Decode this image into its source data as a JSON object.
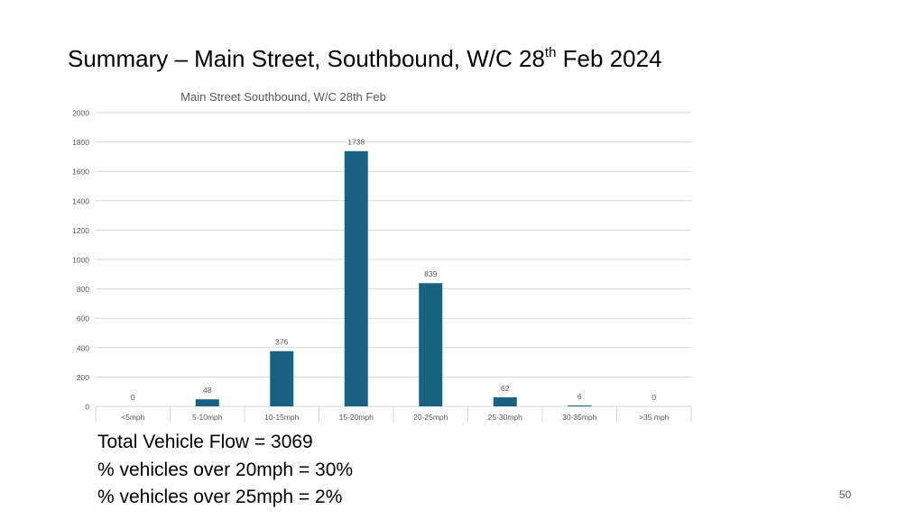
{
  "slide": {
    "title_main": "Summary – Main Street, Southbound, W/C 28",
    "title_sup": "th",
    "title_end": " Feb 2024",
    "page_number": "50"
  },
  "summary": {
    "lines": [
      "Total Vehicle Flow = 3069",
      "% vehicles over 20mph = 30%",
      "% vehicles over 25mph = 2%"
    ]
  },
  "chart_data": {
    "type": "bar",
    "title": "Main Street Southbound, W/C 28th Feb",
    "categories": [
      "<5mph",
      "5-10mph",
      "10-15mph",
      "15-20mph",
      "20-25mph",
      "25-30mph",
      "30-35mph",
      ">35 mph"
    ],
    "values": [
      0,
      48,
      376,
      1738,
      839,
      62,
      6,
      0
    ],
    "data_labels": [
      "0",
      "48",
      "376",
      "1738",
      "839",
      "62",
      "6",
      "0"
    ],
    "yticks": [
      0,
      200,
      400,
      600,
      800,
      1000,
      1200,
      1400,
      1600,
      1800,
      2000
    ],
    "ylim": [
      0,
      2000
    ],
    "xlabel": "",
    "ylabel": "",
    "grid": true,
    "legend": "none",
    "bar_color": "#1a6282",
    "grid_color": "#d9d9d9",
    "text_color": "#595959"
  }
}
